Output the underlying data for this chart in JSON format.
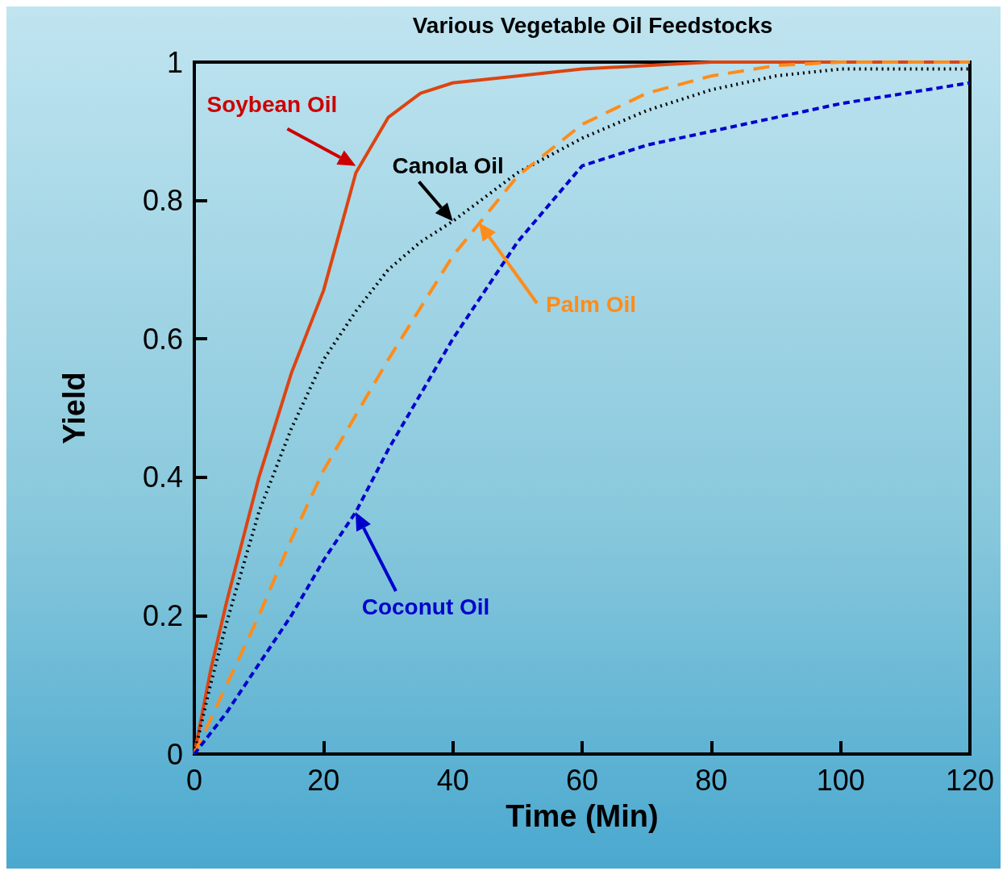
{
  "chart_data": {
    "type": "line",
    "title": "Various Vegetable Oil Feedstocks",
    "xlabel": "Time (Min)",
    "ylabel": "Yield",
    "x": [
      0,
      2.5,
      5,
      10,
      15,
      20,
      25,
      30,
      35,
      40,
      50,
      60,
      70,
      80,
      90,
      100,
      110,
      120
    ],
    "series": [
      {
        "color": "#dd4411",
        "line_style": "solid",
        "values": [
          0,
          0.12,
          0.22,
          0.4,
          0.55,
          0.67,
          0.84,
          0.92,
          0.955,
          0.97,
          0.98,
          0.99,
          0.995,
          1,
          1,
          1,
          1,
          1
        ]
      },
      {
        "color": "#000000",
        "line_style": "dotted",
        "values": [
          0,
          0.1,
          0.19,
          0.35,
          0.47,
          0.57,
          0.64,
          0.7,
          0.74,
          0.77,
          0.84,
          0.89,
          0.93,
          0.96,
          0.98,
          0.99,
          0.99,
          0.99
        ]
      },
      {
        "color": "#ff8c1a",
        "line_style": "dashed",
        "values": [
          0,
          0.05,
          0.1,
          0.2,
          0.31,
          0.41,
          0.49,
          0.57,
          0.645,
          0.72,
          0.835,
          0.91,
          0.955,
          0.98,
          0.995,
          1,
          1,
          1
        ]
      },
      {
        "color": "#0000cc",
        "line_style": "dashed",
        "values": [
          0,
          0.03,
          0.06,
          0.13,
          0.2,
          0.28,
          0.35,
          0.44,
          0.52,
          0.6,
          0.74,
          0.85,
          0.88,
          0.9,
          0.92,
          0.94,
          0.955,
          0.97
        ]
      }
    ],
    "annotations": [
      {
        "text": "Soybean Oil",
        "x": 25,
        "y": 0.85
      },
      {
        "text": "Canola Oil",
        "x": 40,
        "y": 0.77
      },
      "Palm Oil",
      "Coconut Oil"
    ],
    "xlim": [
      0,
      120
    ],
    "xticks": [
      0,
      20,
      40,
      60,
      80,
      100,
      120
    ],
    "ylim": [
      0,
      1
    ],
    "yticks": [
      0,
      0.2,
      0.4,
      0.6,
      0.8,
      1
    ],
    "grid": false,
    "marker": "none"
  }
}
